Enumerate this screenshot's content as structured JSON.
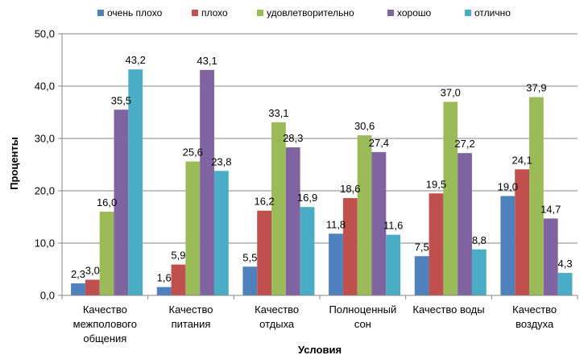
{
  "chart_data": {
    "type": "bar",
    "categories": [
      [
        "Качество",
        "межполового",
        "общения"
      ],
      [
        "Качество",
        "питания"
      ],
      [
        "Качество",
        "отдыха"
      ],
      [
        "Полноценный",
        "сон"
      ],
      [
        "Качество воды"
      ],
      [
        "Качество",
        "воздуха"
      ]
    ],
    "series": [
      {
        "name": "очень плохо",
        "color": "#4F81BD",
        "values": [
          2.3,
          1.6,
          5.5,
          11.8,
          7.5,
          19.0
        ]
      },
      {
        "name": "плохо",
        "color": "#C0504D",
        "values": [
          3.0,
          5.9,
          16.2,
          18.6,
          19.5,
          24.1
        ]
      },
      {
        "name": "удовлетворительно",
        "color": "#9BBB59",
        "values": [
          16.0,
          25.6,
          33.1,
          30.6,
          37.0,
          37.9
        ]
      },
      {
        "name": "хорошо",
        "color": "#8064A2",
        "values": [
          35.5,
          43.1,
          28.3,
          27.4,
          27.2,
          14.7
        ]
      },
      {
        "name": "отлично",
        "color": "#4BACC6",
        "values": [
          43.2,
          23.8,
          16.9,
          11.6,
          8.8,
          4.3
        ]
      }
    ],
    "y_ticks": [
      "0,0",
      "10,0",
      "20,0",
      "30,0",
      "40,0",
      "50,0"
    ],
    "ylim": [
      0,
      50
    ],
    "xlabel": "Условия",
    "ylabel": "Проценты",
    "grid": true,
    "legend_position": "top"
  }
}
